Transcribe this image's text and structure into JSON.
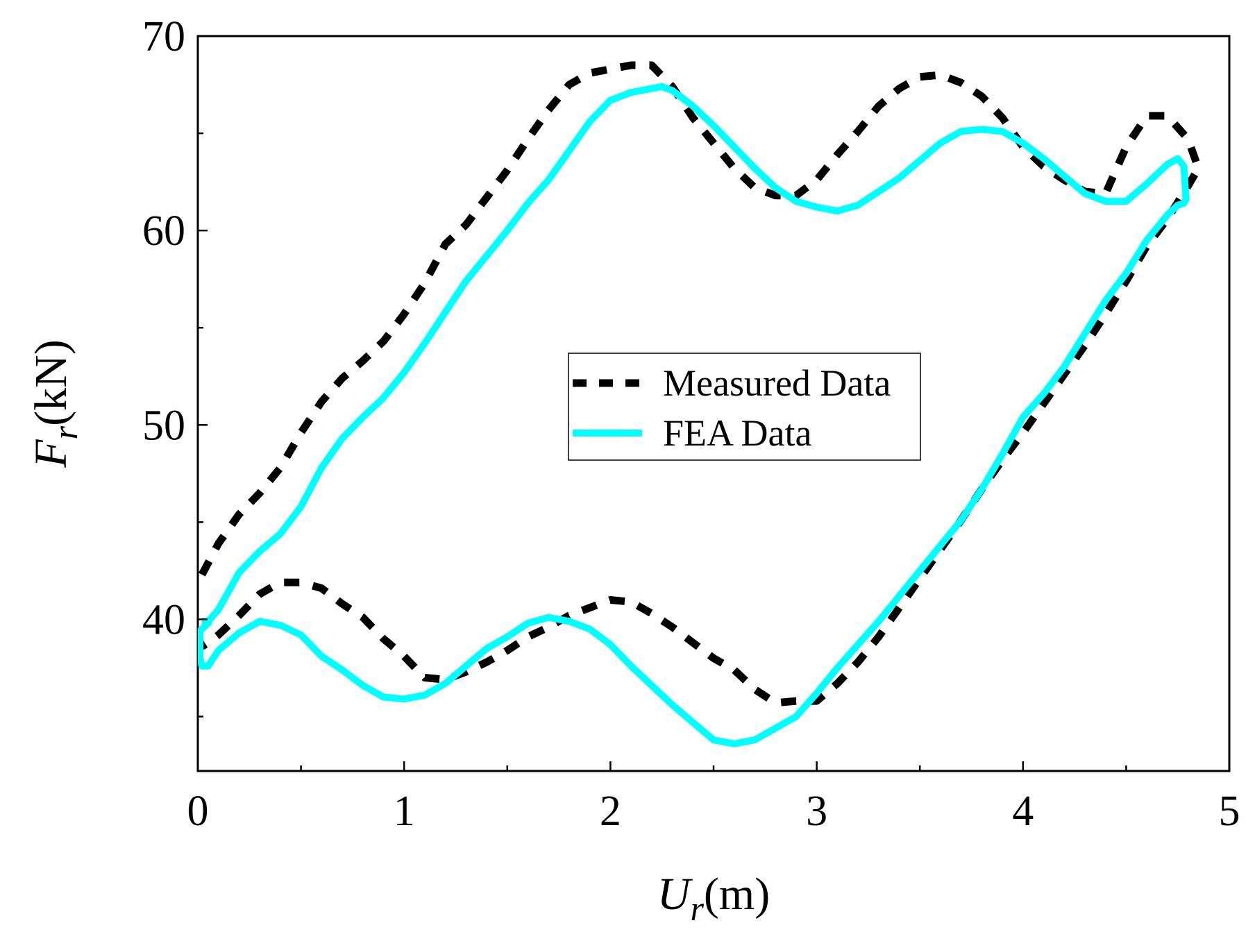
{
  "chart_data": {
    "type": "line",
    "title": "",
    "xlabel": {
      "var": "U",
      "sub": "r",
      "unit": "(m)"
    },
    "ylabel": {
      "var": "F",
      "sub": "r",
      "unit": "(kN)"
    },
    "xlim": [
      0,
      5
    ],
    "ylim": [
      32.2,
      70
    ],
    "xticks": [
      "0",
      "1",
      "2",
      "3",
      "4",
      "5"
    ],
    "yticks": [
      "40",
      "50",
      "60",
      "70"
    ],
    "grid": false,
    "legend_position": "center",
    "colors": {
      "measured": "#000000",
      "fea": "#00ffff"
    },
    "series": [
      {
        "name": "Measured Data",
        "style": "dashed",
        "x": [
          0.02,
          0.05,
          0.1,
          0.2,
          0.3,
          0.4,
          0.5,
          0.6,
          0.7,
          0.8,
          0.9,
          1.0,
          1.1,
          1.2,
          1.3,
          1.4,
          1.5,
          1.6,
          1.7,
          1.8,
          1.9,
          2.0,
          2.1,
          2.2,
          2.3,
          2.4,
          2.5,
          2.6,
          2.7,
          2.8,
          2.9,
          3.0,
          3.1,
          3.2,
          3.3,
          3.4,
          3.5,
          3.6,
          3.7,
          3.8,
          3.9,
          4.0,
          4.1,
          4.2,
          4.3,
          4.4,
          4.5,
          4.6,
          4.7,
          4.8,
          4.85,
          4.8,
          4.7,
          4.6,
          4.5,
          4.4,
          4.3,
          4.2,
          4.1,
          4.0,
          3.9,
          3.8,
          3.7,
          3.6,
          3.5,
          3.4,
          3.3,
          3.2,
          3.1,
          3.0,
          2.9,
          2.8,
          2.7,
          2.6,
          2.5,
          2.4,
          2.3,
          2.2,
          2.1,
          2.0,
          1.9,
          1.8,
          1.7,
          1.6,
          1.5,
          1.4,
          1.3,
          1.2,
          1.1,
          1.0,
          0.9,
          0.8,
          0.7,
          0.6,
          0.5,
          0.4,
          0.3,
          0.2,
          0.1,
          0.05,
          0.02
        ],
        "y": [
          42.3,
          42.9,
          43.9,
          45.4,
          46.5,
          47.8,
          49.6,
          51.2,
          52.4,
          53.3,
          54.3,
          55.7,
          57.3,
          59.3,
          60.3,
          61.7,
          63.1,
          64.7,
          66.2,
          67.5,
          68.1,
          68.3,
          68.5,
          68.5,
          67.4,
          65.8,
          64.5,
          63.2,
          62.2,
          61.8,
          61.8,
          62.6,
          63.9,
          65.1,
          66.4,
          67.3,
          67.9,
          68.0,
          67.6,
          66.9,
          65.8,
          64.3,
          63.3,
          62.6,
          62.0,
          61.9,
          64.3,
          65.9,
          65.9,
          64.7,
          63.2,
          62.3,
          60.6,
          59.2,
          57.4,
          55.7,
          54.1,
          52.6,
          51.1,
          49.6,
          48.2,
          46.7,
          45.1,
          43.6,
          42.1,
          40.6,
          39.1,
          37.8,
          36.7,
          35.8,
          35.8,
          35.7,
          36.4,
          37.4,
          38.0,
          38.8,
          39.6,
          40.3,
          40.9,
          41.0,
          40.6,
          40.2,
          39.6,
          39.1,
          38.4,
          37.8,
          37.3,
          36.9,
          37.0,
          38.1,
          39.0,
          40.1,
          40.8,
          41.6,
          41.9,
          41.9,
          41.3,
          40.2,
          39.2,
          38.8,
          38.6
        ]
      },
      {
        "name": "FEA Data",
        "style": "solid",
        "x": [
          0.02,
          0.05,
          0.1,
          0.2,
          0.3,
          0.4,
          0.5,
          0.6,
          0.7,
          0.8,
          0.9,
          1.0,
          1.1,
          1.2,
          1.3,
          1.4,
          1.5,
          1.6,
          1.7,
          1.8,
          1.9,
          2.0,
          2.1,
          2.2,
          2.25,
          2.3,
          2.4,
          2.5,
          2.6,
          2.7,
          2.8,
          2.9,
          3.0,
          3.1,
          3.2,
          3.3,
          3.4,
          3.5,
          3.6,
          3.7,
          3.8,
          3.9,
          4.0,
          4.1,
          4.2,
          4.3,
          4.4,
          4.45,
          4.5,
          4.6,
          4.7,
          4.75,
          4.78,
          4.79,
          4.78,
          4.75,
          4.7,
          4.6,
          4.5,
          4.4,
          4.3,
          4.2,
          4.1,
          4.0,
          3.9,
          3.8,
          3.7,
          3.6,
          3.5,
          3.4,
          3.3,
          3.2,
          3.1,
          3.0,
          2.9,
          2.8,
          2.7,
          2.6,
          2.55,
          2.5,
          2.4,
          2.3,
          2.2,
          2.1,
          2.0,
          1.9,
          1.8,
          1.7,
          1.6,
          1.5,
          1.4,
          1.3,
          1.2,
          1.1,
          1.0,
          0.9,
          0.8,
          0.7,
          0.6,
          0.5,
          0.4,
          0.3,
          0.2,
          0.1,
          0.05,
          0.02,
          0.01,
          0.01,
          0.06
        ],
        "y": [
          39.9,
          39.9,
          40.5,
          42.4,
          43.5,
          44.4,
          45.8,
          47.8,
          49.3,
          50.4,
          51.4,
          52.7,
          54.2,
          55.8,
          57.4,
          58.7,
          60.0,
          61.4,
          62.6,
          64.1,
          65.6,
          66.7,
          67.1,
          67.3,
          67.4,
          67.2,
          66.4,
          65.4,
          64.3,
          63.2,
          62.2,
          61.5,
          61.2,
          61.0,
          61.3,
          62.0,
          62.7,
          63.6,
          64.5,
          65.1,
          65.2,
          65.1,
          64.5,
          63.7,
          62.8,
          61.9,
          61.5,
          61.5,
          61.5,
          62.4,
          63.4,
          63.7,
          63.3,
          61.6,
          61.4,
          61.3,
          60.8,
          59.5,
          57.8,
          56.4,
          54.7,
          53.0,
          51.6,
          50.4,
          48.5,
          46.7,
          45.1,
          43.8,
          42.5,
          41.2,
          39.9,
          38.7,
          37.5,
          36.2,
          35.0,
          34.4,
          33.8,
          33.6,
          33.7,
          33.8,
          34.7,
          35.6,
          36.6,
          37.6,
          38.7,
          39.5,
          39.9,
          40.1,
          39.8,
          39.1,
          38.5,
          37.6,
          36.7,
          36.1,
          35.9,
          36.0,
          36.6,
          37.4,
          38.1,
          39.2,
          39.7,
          39.9,
          39.3,
          38.4,
          37.6,
          37.6,
          38.0,
          39.4,
          39.9
        ]
      }
    ]
  }
}
